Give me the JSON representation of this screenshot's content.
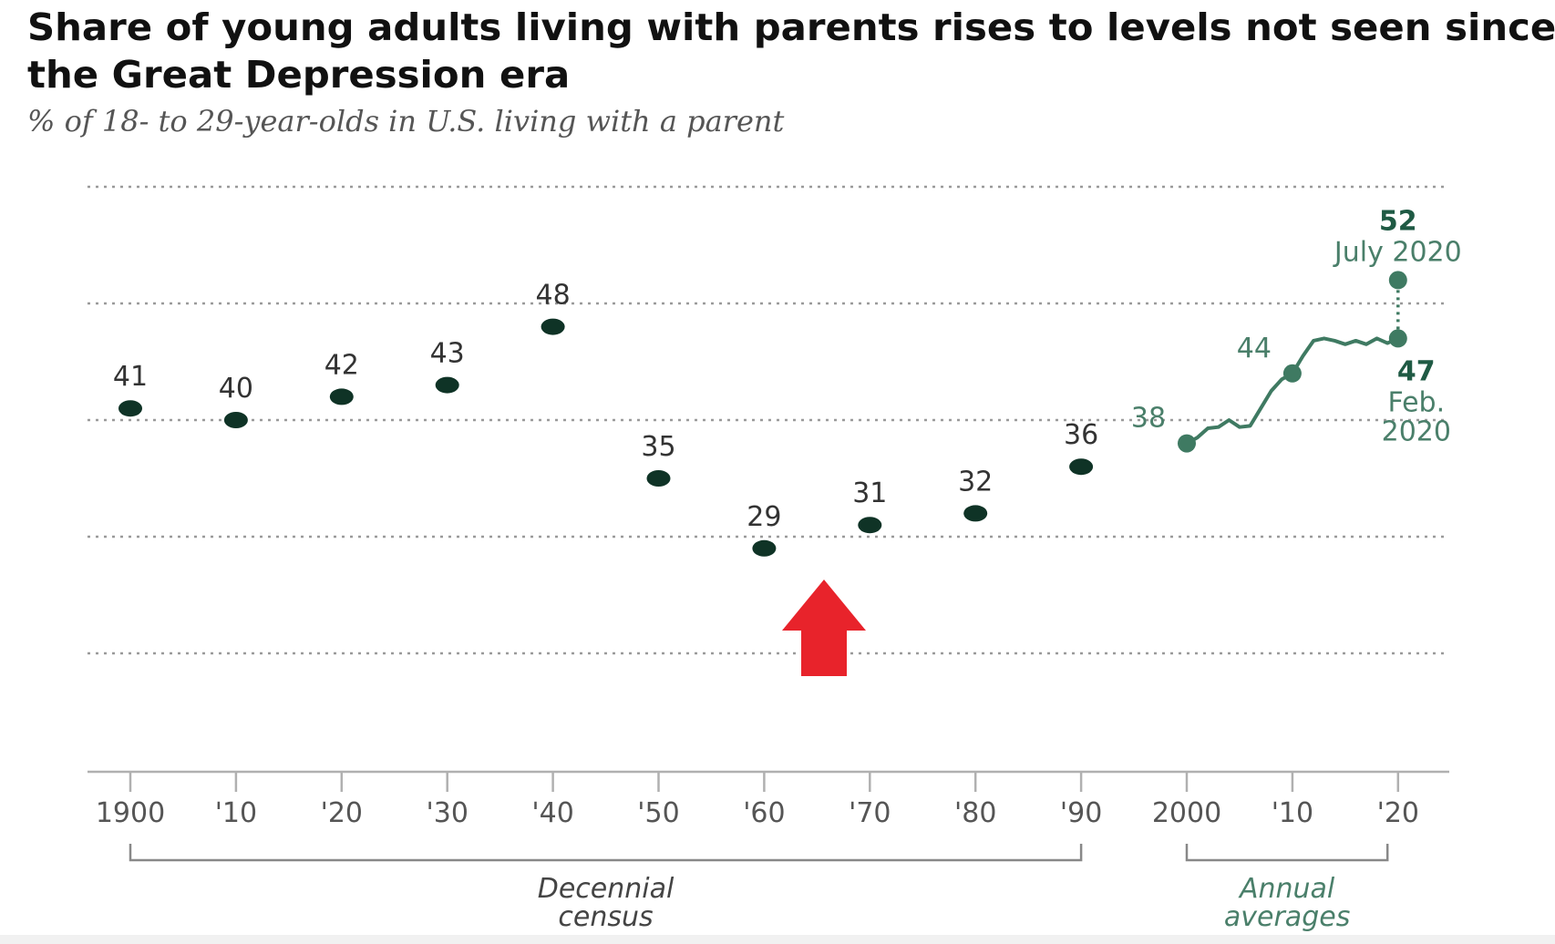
{
  "title": "Share of young adults living with parents rises to levels not seen since the Great Depression era",
  "subtitle": "% of 18- to 29-year-olds in U.S. living with a parent",
  "colors": {
    "census_dot": "#0f3326",
    "annual_line": "#3f7a62",
    "gridline": "#9a9a9a",
    "axis": "#b0b0b0",
    "arrow": "#e8232b"
  },
  "chart_data": {
    "type": "line",
    "title": "Share of young adults living with parents rises to levels not seen since the Great Depression era",
    "subtitle": "% of 18- to 29-year-olds in U.S. living with a parent",
    "xlabel": "",
    "ylabel": "",
    "xlim": [
      1895,
      2025
    ],
    "ylim": [
      20,
      55
    ],
    "grid": true,
    "gridlines": [
      30,
      40,
      50
    ],
    "x_tick_values": [
      1900,
      1910,
      1920,
      1930,
      1940,
      1950,
      1960,
      1970,
      1980,
      1990,
      2000,
      2010,
      2020
    ],
    "x_tick_labels": [
      "1900",
      "'10",
      "'20",
      "'30",
      "'40",
      "'50",
      "'60",
      "'70",
      "'80",
      "'90",
      "2000",
      "'10",
      "'20"
    ],
    "series": [
      {
        "kind": "points",
        "x": [
          1900,
          1910,
          1920,
          1930,
          1940,
          1950,
          1960,
          1970,
          1980,
          1990
        ],
        "values": [
          41,
          40,
          42,
          43,
          48,
          35,
          29,
          31,
          32,
          36
        ],
        "labels": [
          "41",
          "40",
          "42",
          "43",
          "48",
          "35",
          "29",
          "31",
          "32",
          "36"
        ]
      },
      {
        "kind": "line",
        "x": [
          2000,
          2001,
          2002,
          2003,
          2004,
          2005,
          2006,
          2007,
          2008,
          2009,
          2010,
          2011,
          2012,
          2013,
          2014,
          2015,
          2016,
          2017,
          2018,
          2019,
          2020
        ],
        "values": [
          38,
          38.5,
          39.3,
          39.4,
          40,
          39.4,
          39.5,
          41,
          42.5,
          43.5,
          44,
          45.5,
          46.8,
          47,
          46.8,
          46.5,
          46.8,
          46.5,
          47,
          46.6,
          47
        ]
      },
      {
        "kind": "dotted-jump",
        "x": [
          2020,
          2020
        ],
        "values": [
          47,
          52
        ]
      }
    ],
    "annotations": [
      {
        "x": 2000,
        "y": 38,
        "text": "38"
      },
      {
        "x": 2010,
        "y": 44,
        "text": "44"
      },
      {
        "x": 2020,
        "y": 52,
        "text": "52",
        "note": "July 2020"
      },
      {
        "x": 2020,
        "y": 47,
        "text": "47",
        "note_lines": [
          "Feb.",
          "2020"
        ]
      }
    ],
    "brackets": [
      {
        "from": 1900,
        "to": 1990,
        "label_lines": [
          "Decennial",
          "census"
        ]
      },
      {
        "from": 2000,
        "to": 2019,
        "label_lines": [
          "Annual",
          "averages"
        ]
      }
    ]
  }
}
